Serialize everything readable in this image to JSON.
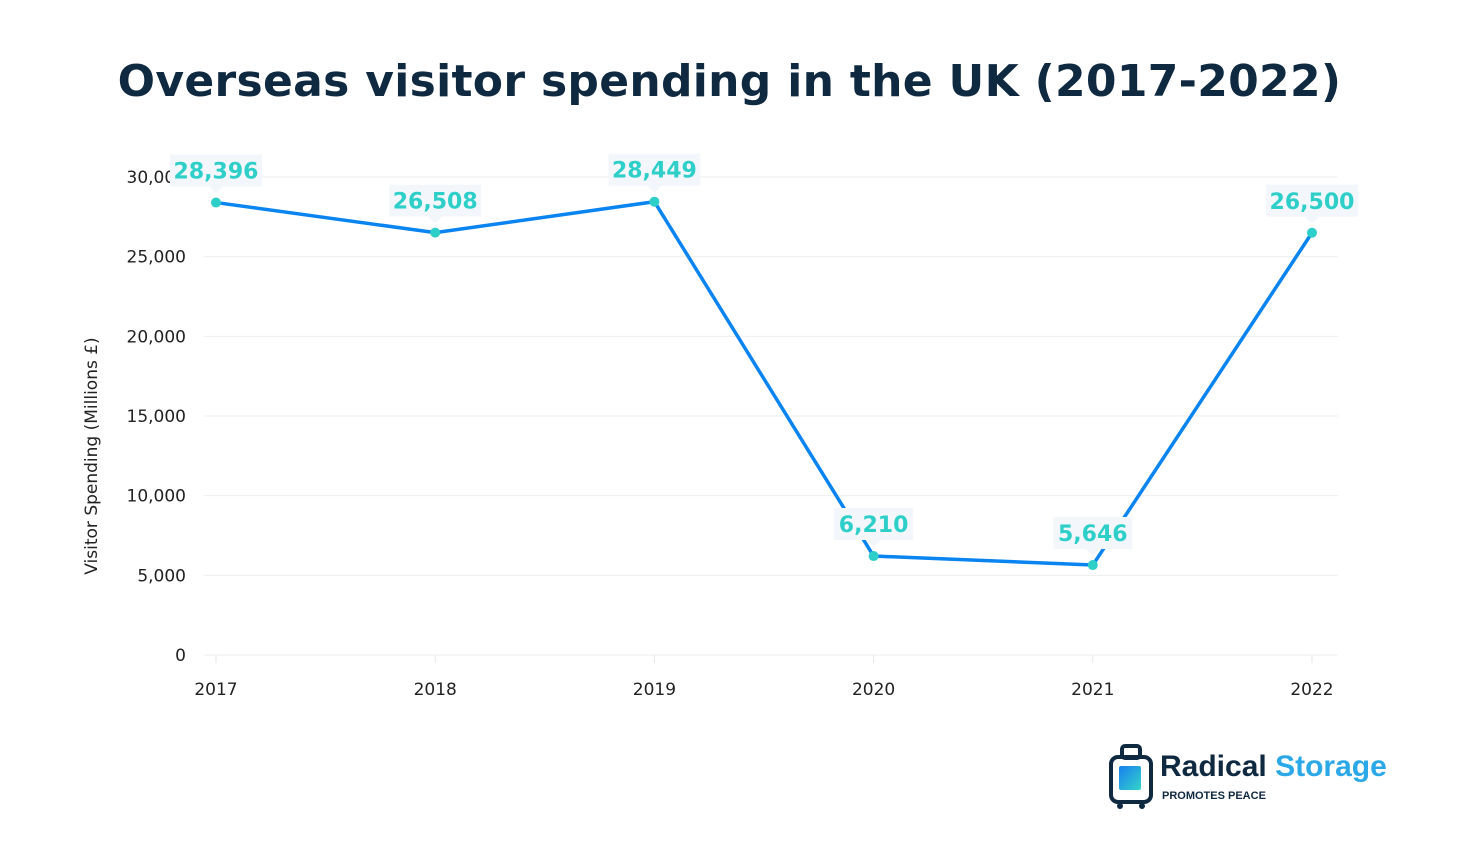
{
  "chart_data": {
    "type": "line",
    "title": "Overseas visitor spending in the UK (2017-2022)",
    "xlabel": "",
    "ylabel": "Visitor Spending (Millions £)",
    "categories": [
      "2017",
      "2018",
      "2019",
      "2020",
      "2021",
      "2022"
    ],
    "values": [
      28396,
      26508,
      28449,
      6210,
      5646,
      26500
    ],
    "data_labels": [
      "28,396",
      "26,508",
      "28,449",
      "6,210",
      "5,646",
      "26,500"
    ],
    "ylim": [
      0,
      30000
    ],
    "yticks": [
      0,
      5000,
      10000,
      15000,
      20000,
      25000,
      30000
    ],
    "ytick_labels": [
      "0",
      "5,000",
      "10,000",
      "15,000",
      "20,000",
      "25,000",
      "30,000"
    ],
    "grid": true,
    "line_color": "#0a84f0",
    "marker_color": "#2ecfc9",
    "label_color": "#2ecfc9"
  },
  "logo": {
    "brand": "Radical",
    "brand2": "Storage",
    "tagline": "PROMOTES PEACE"
  }
}
